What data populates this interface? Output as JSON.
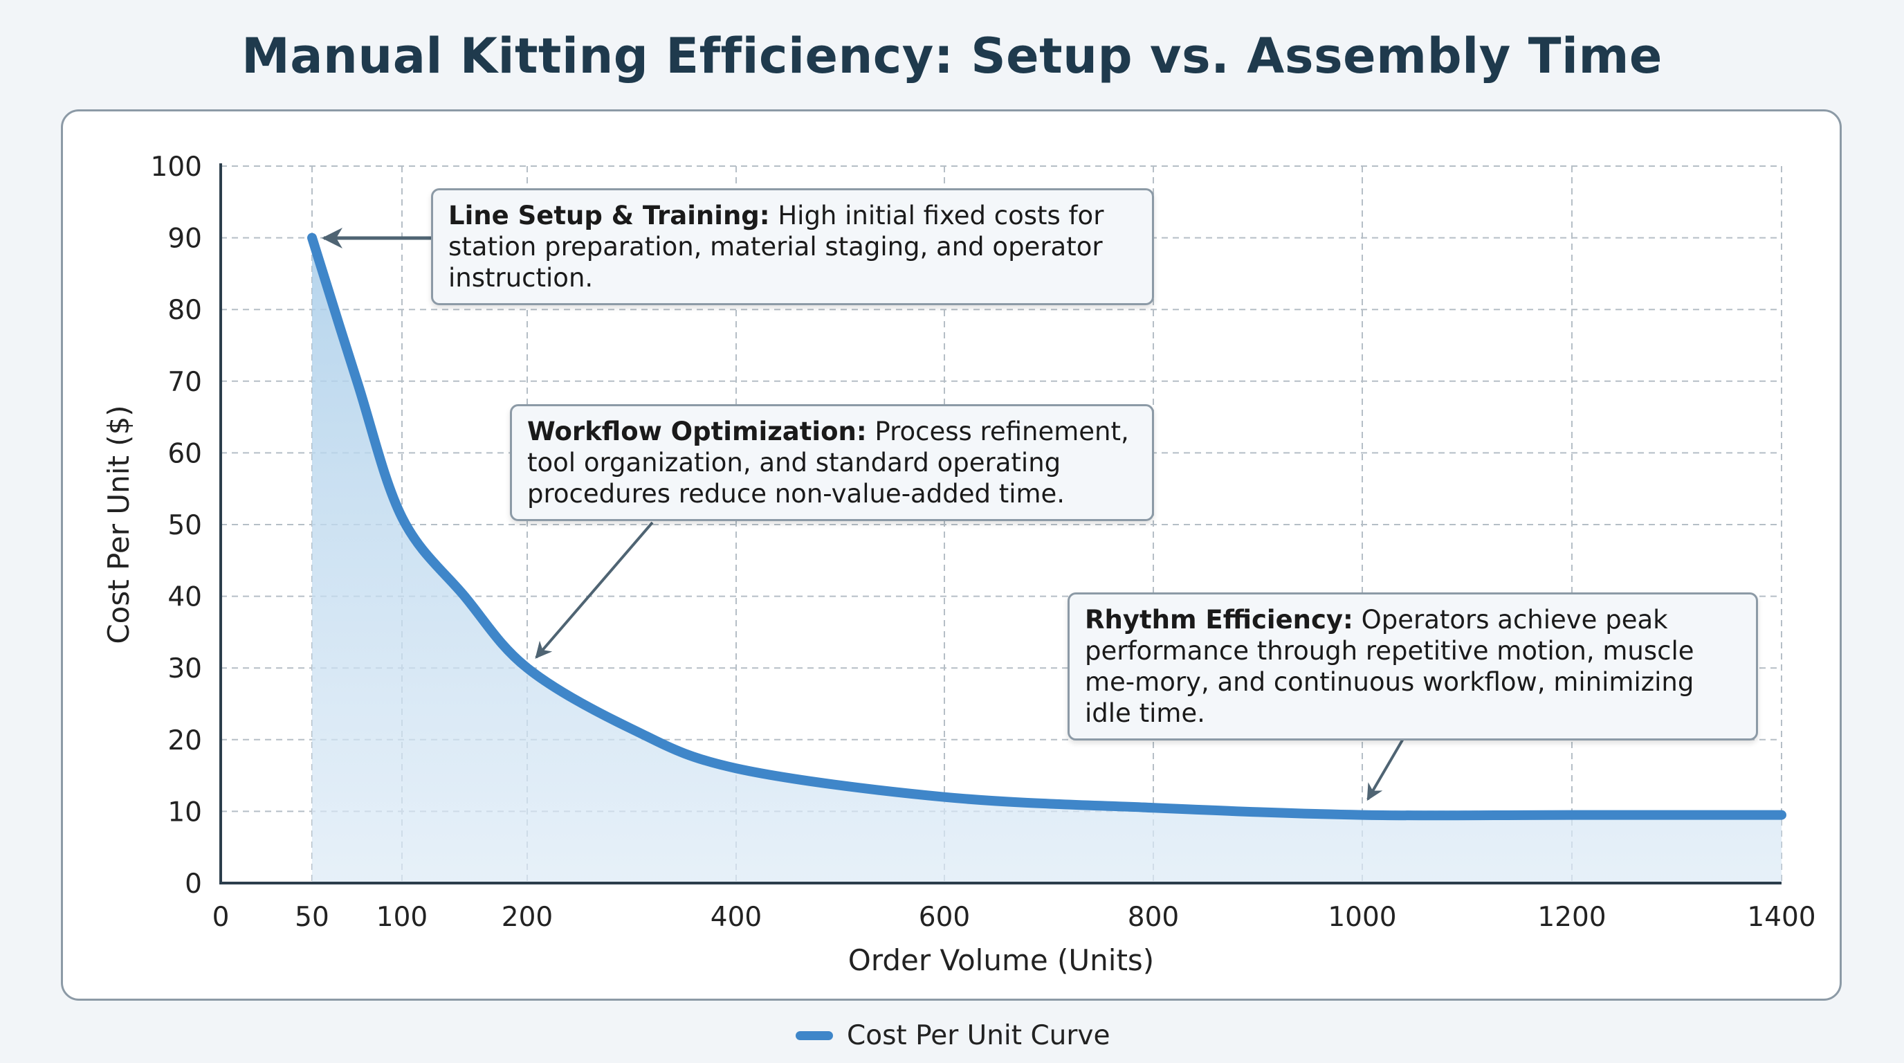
{
  "chart_data": {
    "type": "area",
    "title": "Manual Kitting Efficiency: Setup vs. Assembly Time",
    "xlabel": "Order Volume (Units)",
    "ylabel": "Cost Per Unit ($)",
    "x_ticks": [
      0,
      50,
      100,
      200,
      400,
      600,
      800,
      1000,
      1200,
      1400
    ],
    "y_ticks": [
      0,
      10,
      20,
      30,
      40,
      50,
      60,
      70,
      80,
      90,
      100
    ],
    "xlim": [
      0,
      1400
    ],
    "ylim": [
      0,
      100
    ],
    "x_scale": "non-uniform (ticks at 0, 50, 100, 200, then every 200)",
    "grid": true,
    "legend_position": "bottom-center",
    "series": [
      {
        "name": "Cost Per Unit Curve",
        "color": "#3f86c9",
        "x": [
          50,
          75,
          100,
          150,
          200,
          300,
          400,
          600,
          800,
          1000,
          1200,
          1400
        ],
        "y": [
          90,
          70,
          51,
          40,
          30,
          21.5,
          16,
          12,
          10.5,
          9.5,
          9.5,
          9.5
        ]
      }
    ],
    "annotations": [
      {
        "bold": "Line Setup & Training:",
        "text": " High initial fixed costs for station preparation, material staging, and operator instruction.",
        "x": 50,
        "y": 90
      },
      {
        "bold": "Workflow Optimization:",
        "text": " Process refinement, tool organization, and standard operating procedures reduce non-value-added time.",
        "x": 200,
        "y": 30
      },
      {
        "bold": "Rhythm Efficiency:",
        "text": " Operators achieve peak performance through repetitive motion, muscle me-mory, and continuous workflow, minimizing idle time.",
        "x": 1000,
        "y": 10
      }
    ]
  }
}
